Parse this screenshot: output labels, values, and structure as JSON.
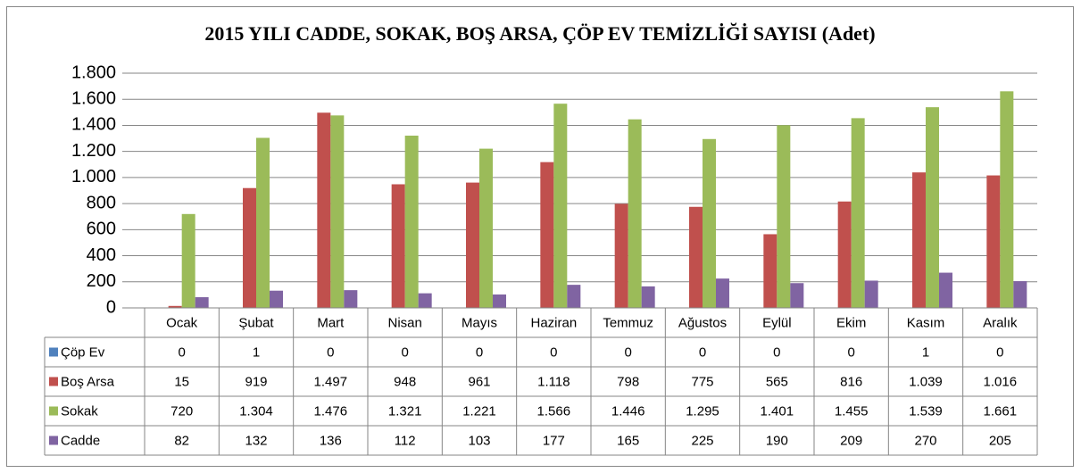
{
  "chart_data": {
    "type": "bar",
    "title": "2015 YILI CADDE, SOKAK, BOŞ ARSA, ÇÖP EV TEMİZLİĞİ SAYISI (Adet)",
    "categories": [
      "Ocak",
      "Şubat",
      "Mart",
      "Nisan",
      "Mayıs",
      "Haziran",
      "Temmuz",
      "Ağustos",
      "Eylül",
      "Ekim",
      "Kasım",
      "Aralık"
    ],
    "series": [
      {
        "name": "Çöp Ev",
        "color": "#4f81bd",
        "values": [
          0,
          1,
          0,
          0,
          0,
          0,
          0,
          0,
          0,
          0,
          1,
          0
        ],
        "value_labels": [
          "0",
          "1",
          "0",
          "0",
          "0",
          "0",
          "0",
          "0",
          "0",
          "0",
          "1",
          "0"
        ]
      },
      {
        "name": "Boş Arsa",
        "color": "#c0504d",
        "values": [
          15,
          919,
          1497,
          948,
          961,
          1118,
          798,
          775,
          565,
          816,
          1039,
          1016
        ],
        "value_labels": [
          "15",
          "919",
          "1.497",
          "948",
          "961",
          "1.118",
          "798",
          "775",
          "565",
          "816",
          "1.039",
          "1.016"
        ]
      },
      {
        "name": "Sokak",
        "color": "#9bbb59",
        "values": [
          720,
          1304,
          1476,
          1321,
          1221,
          1566,
          1446,
          1295,
          1401,
          1455,
          1539,
          1661
        ],
        "value_labels": [
          "720",
          "1.304",
          "1.476",
          "1.321",
          "1.221",
          "1.566",
          "1.446",
          "1.295",
          "1.401",
          "1.455",
          "1.539",
          "1.661"
        ]
      },
      {
        "name": "Cadde",
        "color": "#8064a2",
        "values": [
          82,
          132,
          136,
          112,
          103,
          177,
          165,
          225,
          190,
          209,
          270,
          205
        ],
        "value_labels": [
          "82",
          "132",
          "136",
          "112",
          "103",
          "177",
          "165",
          "225",
          "190",
          "209",
          "270",
          "205"
        ]
      }
    ],
    "ylim": [
      0,
      1800
    ],
    "yticks": [
      0,
      200,
      400,
      600,
      800,
      {
        "value": 1000,
        "label": "1.000"
      },
      {
        "value": 1200,
        "label": "1.200"
      },
      {
        "value": 1400,
        "label": "1.400"
      },
      {
        "value": 1600,
        "label": "1.600"
      },
      {
        "value": 1800,
        "label": "1.800"
      }
    ],
    "grid": true
  }
}
